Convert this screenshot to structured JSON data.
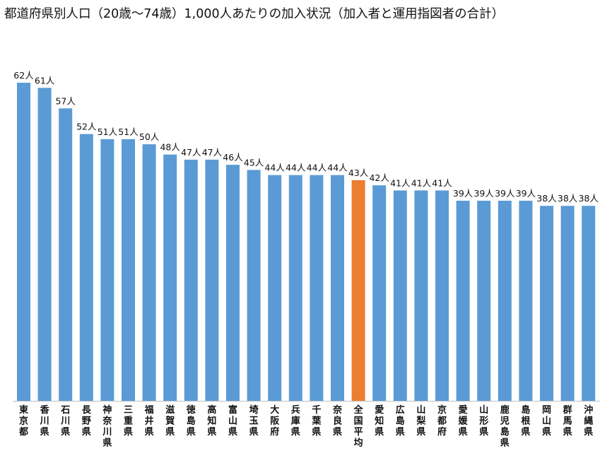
{
  "chart_data": {
    "type": "bar",
    "title": "都道府県別人口（20歳～74歳）1,000人あたりの加入状況（加入者と運用指図者の合計）",
    "xlabel": "",
    "ylabel": "",
    "ylim": [
      0,
      62
    ],
    "grid": false,
    "legend": "none",
    "label_suffix": "人",
    "categories": [
      "東京都",
      "香川県",
      "石川県",
      "長野県",
      "神奈川県",
      "三重県",
      "福井県",
      "滋賀県",
      "徳島県",
      "高知県",
      "富山県",
      "埼玉県",
      "大阪府",
      "兵庫県",
      "千葉県",
      "奈良県",
      "全国平均",
      "愛知県",
      "広島県",
      "山梨県",
      "京都府",
      "愛媛県",
      "山形県",
      "鹿児島県",
      "島根県",
      "岡山県",
      "群馬県",
      "沖縄県"
    ],
    "values": [
      62,
      61,
      57,
      52,
      51,
      51,
      50,
      48,
      47,
      47,
      46,
      45,
      44,
      44,
      44,
      44,
      43,
      42,
      41,
      41,
      41,
      39,
      39,
      39,
      39,
      38,
      38,
      38
    ],
    "highlight_category": "全国平均",
    "colors": {
      "bar": "#5b9bd5",
      "highlight": "#ed7d31",
      "axis": "#bfbfbf",
      "text": "#111111"
    }
  }
}
